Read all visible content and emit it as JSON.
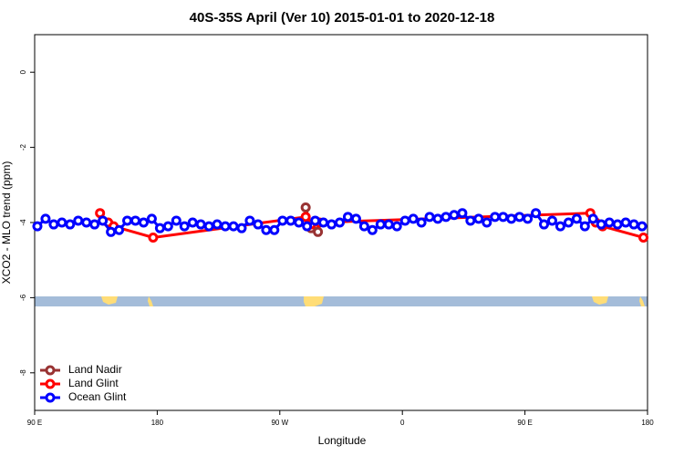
{
  "chart_data": {
    "type": "line",
    "title": "40S-35S April (Ver 10)   2015-01-01 to 2020-12-18",
    "x_label": "Longitude",
    "y_label": "XCO2 - MLO trend (ppm)",
    "xlim": [
      90,
      540
    ],
    "xticks": [
      {
        "value": 90,
        "label": "90 E"
      },
      180,
      {
        "value": 270,
        "label": "90 W"
      },
      {
        "value": 360,
        "label": "0"
      },
      {
        "value": 450,
        "label": "90 E"
      },
      {
        "value": 540,
        "label": "180"
      }
    ],
    "ylim": [
      -9,
      1
    ],
    "yticks": [
      0,
      -2,
      -4,
      -6,
      -8
    ],
    "legend": "bottom-left",
    "series": [
      {
        "name": "Land Nadir",
        "color": "#993333",
        "x": [
          289,
          293,
          298
        ],
        "values": [
          -3.6,
          -4.15,
          -4.25
        ]
      },
      {
        "name": "Land Glint",
        "color": "#ff0000",
        "x": [
          138,
          144,
          148,
          177,
          289,
          293,
          299,
          498,
          502,
          507,
          537
        ],
        "values": [
          -3.75,
          -4.0,
          -4.1,
          -4.4,
          -3.85,
          -4.05,
          -4.0,
          -3.75,
          -4.0,
          -4.1,
          -4.4
        ]
      },
      {
        "name": "Ocean Glint",
        "color": "#0000ff",
        "x": [
          92,
          98,
          104,
          110,
          116,
          122,
          128,
          134,
          140,
          146,
          152,
          158,
          164,
          170,
          176,
          182,
          188,
          194,
          200,
          206,
          212,
          218,
          224,
          230,
          236,
          242,
          248,
          254,
          260,
          266,
          272,
          278,
          284,
          290,
          296,
          302,
          308,
          314,
          320,
          326,
          332,
          338,
          344,
          350,
          356,
          362,
          368,
          374,
          380,
          386,
          392,
          398,
          404,
          410,
          416,
          422,
          428,
          434,
          440,
          446,
          452,
          458,
          464,
          470,
          476,
          482,
          488,
          494,
          500,
          506,
          512,
          518,
          524,
          530,
          536
        ],
        "values": [
          -4.1,
          -3.9,
          -4.05,
          -4.0,
          -4.05,
          -3.95,
          -4.0,
          -4.05,
          -3.95,
          -4.25,
          -4.2,
          -3.95,
          -3.95,
          -4.0,
          -3.9,
          -4.15,
          -4.1,
          -3.95,
          -4.1,
          -4.0,
          -4.05,
          -4.1,
          -4.05,
          -4.1,
          -4.1,
          -4.15,
          -3.95,
          -4.05,
          -4.2,
          -4.2,
          -3.95,
          -3.95,
          -4.0,
          -4.1,
          -3.95,
          -4.0,
          -4.05,
          -4.0,
          -3.85,
          -3.9,
          -4.1,
          -4.2,
          -4.05,
          -4.05,
          -4.1,
          -3.95,
          -3.9,
          -4.0,
          -3.85,
          -3.9,
          -3.85,
          -3.8,
          -3.75,
          -3.95,
          -3.9,
          -4.0,
          -3.85,
          -3.85,
          -3.9,
          -3.85,
          -3.9,
          -3.75,
          -4.05,
          -3.95,
          -4.1,
          -4.0,
          -3.9,
          -4.1,
          -3.9,
          -4.05,
          -4.0,
          -4.05,
          -4.0,
          -4.05,
          -4.1
        ]
      }
    ]
  }
}
